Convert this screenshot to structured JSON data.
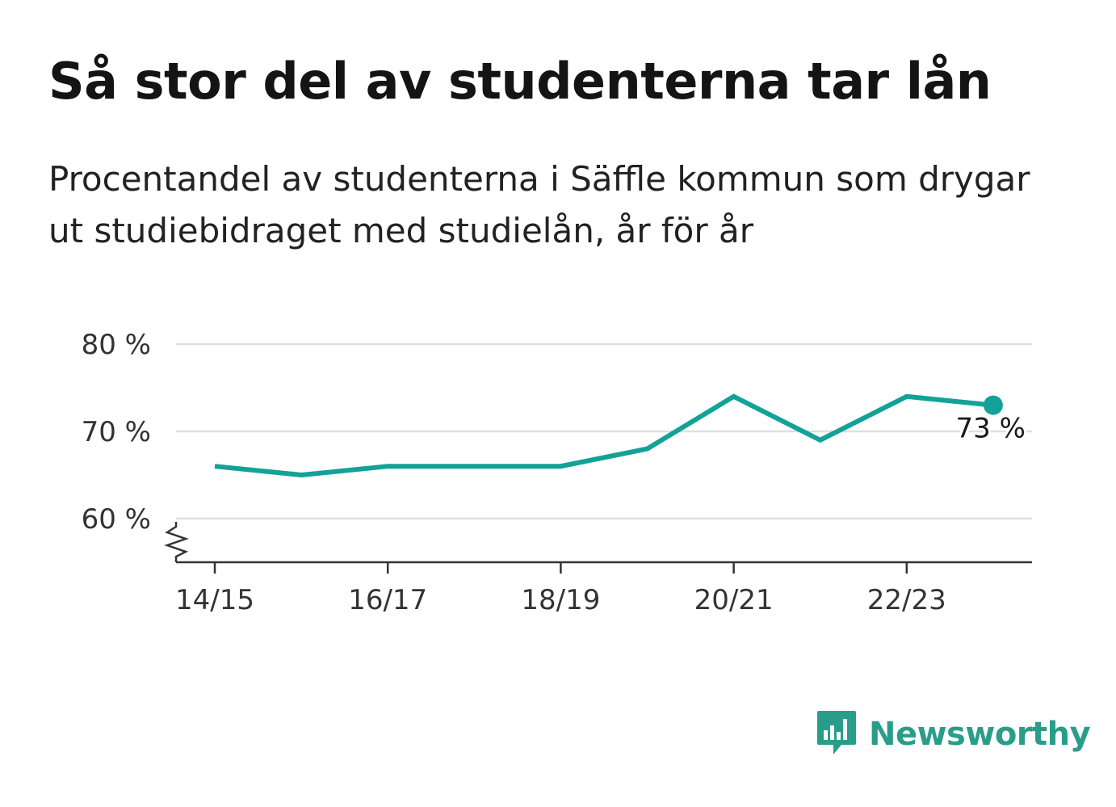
{
  "header": {
    "title": "Så stor del av studenterna tar lån",
    "subtitle": "Procentandel av studenterna i Säffle kommun som drygar ut studiebidraget med studielån, år för år"
  },
  "chart_data": {
    "type": "line",
    "title": "Så stor del av studenterna tar lån",
    "subtitle": "Procentandel av studenterna i Säffle kommun som drygar ut studiebidraget med studielån, år för år",
    "categories": [
      "14/15",
      "15/16",
      "16/17",
      "17/18",
      "18/19",
      "19/20",
      "20/21",
      "21/22",
      "22/23",
      "23/24"
    ],
    "tick_labels": [
      "14/15",
      "16/17",
      "18/19",
      "20/21",
      "22/23"
    ],
    "series": [
      {
        "values": [
          66,
          65,
          66,
          66,
          66,
          68,
          74,
          69,
          74,
          73
        ],
        "color": "#13a297"
      }
    ],
    "ylim": [
      55,
      80
    ],
    "y_ticks": [
      60,
      70,
      80
    ],
    "y_tick_labels": [
      "80 %",
      "70 %",
      "60 %"
    ],
    "y_axis_break": true,
    "grid": true,
    "last_value_label": "73 %",
    "xlabel": "",
    "ylabel": ""
  },
  "colors": {
    "line": "#13a297",
    "grid": "#e0e0e0",
    "axis": "#333333",
    "brand": "#2a9d8a"
  },
  "logo": {
    "name": "Newsworthy",
    "icon": "newsworthy-logo-icon"
  }
}
